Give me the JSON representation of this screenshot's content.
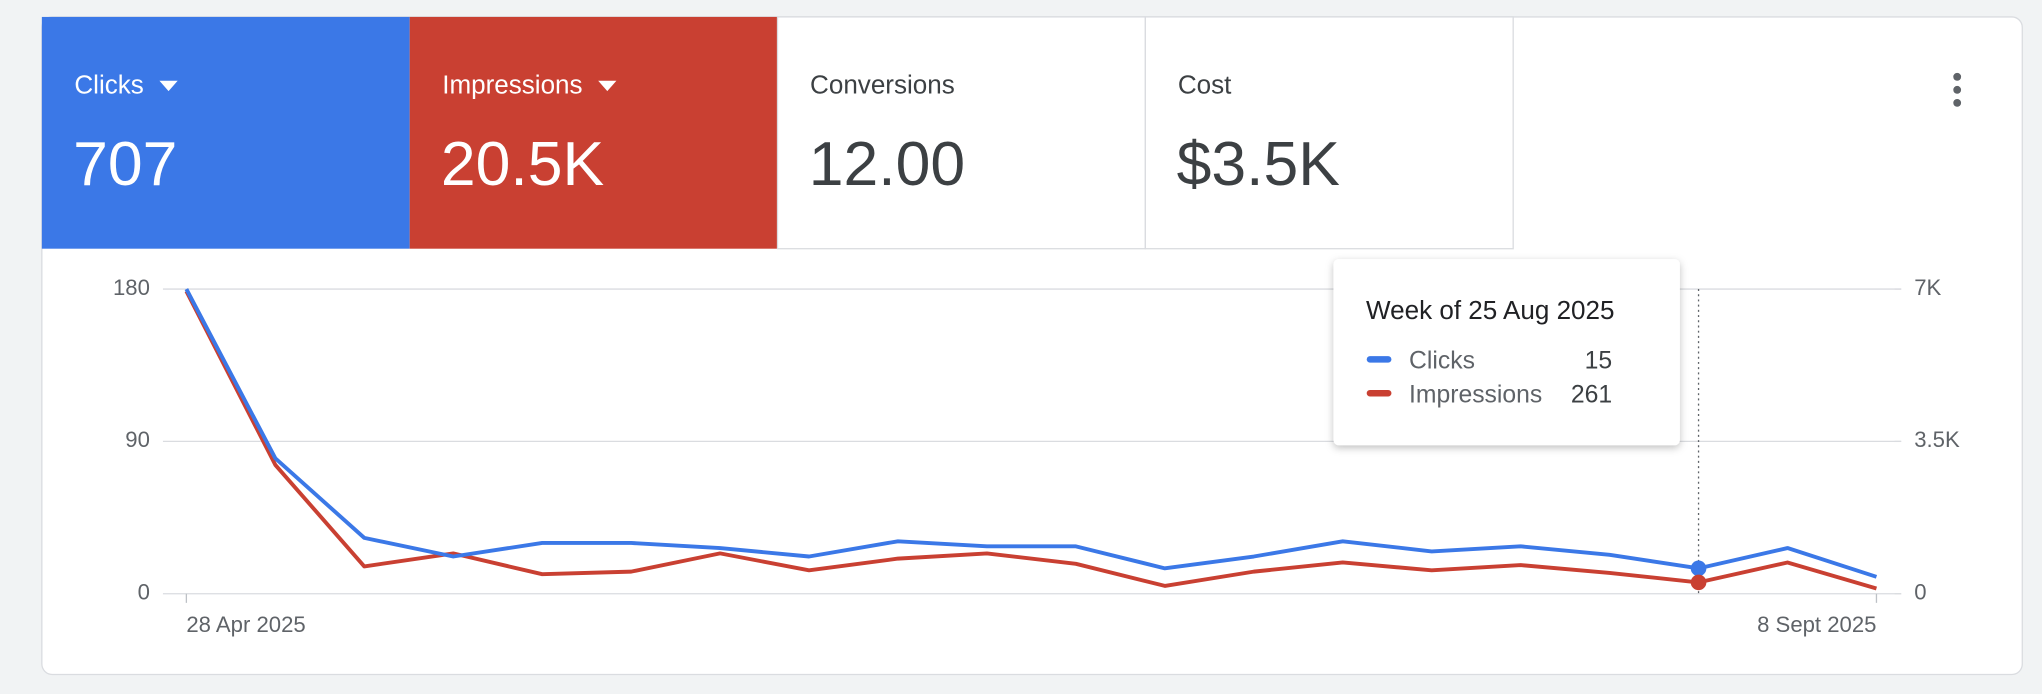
{
  "tiles": [
    {
      "label": "Clicks",
      "value": "707",
      "color": "#3b78e7",
      "dropdown": true
    },
    {
      "label": "Impressions",
      "value": "20.5K",
      "color": "#c94032",
      "dropdown": true
    },
    {
      "label": "Conversions",
      "value": "12.00",
      "color": "#ffffff",
      "dropdown": false
    },
    {
      "label": "Cost",
      "value": "$3.5K",
      "color": "#ffffff",
      "dropdown": false
    }
  ],
  "tooltip": {
    "title": "Week of 25 Aug 2025",
    "rows": [
      {
        "name": "Clicks",
        "value": 15
      },
      {
        "name": "Impressions",
        "value": 261
      }
    ]
  },
  "chart_data": {
    "type": "line",
    "categories": [
      "28 Apr 2025",
      null,
      null,
      null,
      null,
      null,
      null,
      null,
      null,
      null,
      null,
      null,
      null,
      null,
      null,
      null,
      null,
      null,
      null,
      "8 Sept 2025"
    ],
    "series": [
      {
        "name": "Clicks",
        "color": "#3b78e7",
        "values": [
          180,
          80,
          33,
          22,
          30,
          30,
          27,
          22,
          31,
          28,
          28,
          15,
          22,
          31,
          25,
          28,
          23,
          15,
          27,
          10
        ]
      },
      {
        "name": "Impressions",
        "color": "#c94032",
        "axis": "y2",
        "values": [
          6950,
          2960,
          628,
          927,
          449,
          508,
          927,
          538,
          807,
          927,
          688,
          180,
          508,
          718,
          538,
          658,
          479,
          261,
          718,
          120
        ]
      }
    ],
    "ylim": [
      0,
      180
    ],
    "yticks": [
      0,
      90,
      180
    ],
    "y2lim": [
      0,
      7000
    ],
    "y2ticks": [
      0,
      {
        "value": 3500,
        "label": "3.5K"
      },
      {
        "value": 7000,
        "label": "7K"
      }
    ],
    "grid": true
  }
}
